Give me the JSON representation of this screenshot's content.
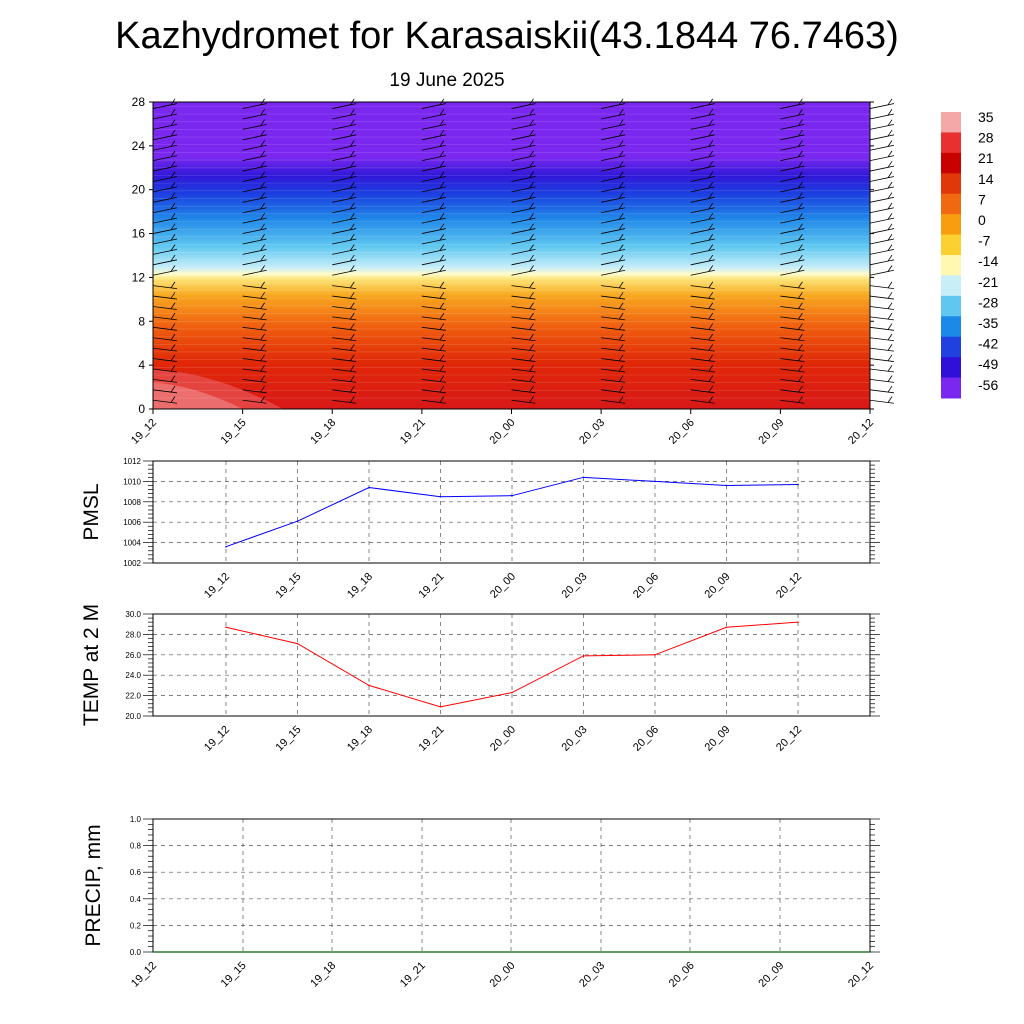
{
  "title": "Kazhydromet for Karasaiskii(43.1844 76.7463)",
  "subtitle": "19 June 2025",
  "chart_data": [
    {
      "type": "heatmap",
      "title": "",
      "xlabel": "",
      "ylabel": "",
      "x_ticks": [
        "19_12",
        "19_15",
        "19_18",
        "19_21",
        "20_00",
        "20_03",
        "20_06",
        "20_09",
        "20_12"
      ],
      "y_ticks": [
        "0",
        "4",
        "8",
        "12",
        "16",
        "20",
        "24",
        "28"
      ],
      "ylim": [
        0,
        28
      ],
      "colorbar": {
        "labels": [
          "35",
          "28",
          "21",
          "14",
          "7",
          "0",
          "-7",
          "-14",
          "-21",
          "-28",
          "-35",
          "-42",
          "-49",
          "-56"
        ],
        "colors": [
          "#f4a8a8",
          "#e83030",
          "#c80000",
          "#e03808",
          "#f06810",
          "#f89c10",
          "#fcd030",
          "#fff8b0",
          "#c8eef8",
          "#60c8f0",
          "#1c88e8",
          "#2040e0",
          "#3010d8",
          "#7a28f0"
        ]
      },
      "barbs": "wind barbs at each time step"
    },
    {
      "type": "line",
      "ylabel": "PMSL",
      "x": [
        "19_12",
        "19_15",
        "19_18",
        "19_21",
        "20_00",
        "20_03",
        "20_06",
        "20_09",
        "20_12"
      ],
      "y_ticks": [
        "1002",
        "1004",
        "1006",
        "1008",
        "1010",
        "1012"
      ],
      "ylim": [
        1002,
        1012
      ],
      "series": [
        {
          "values": [
            1003.6,
            1006.1,
            1009.4,
            1008.5,
            1008.6,
            1010.4,
            1010.0,
            1009.6,
            1009.7
          ],
          "color": "#0000ff"
        }
      ]
    },
    {
      "type": "line",
      "ylabel": "TEMP at 2 M",
      "x": [
        "19_12",
        "19_15",
        "19_18",
        "19_21",
        "20_00",
        "20_03",
        "20_06",
        "20_09",
        "20_12"
      ],
      "y_ticks": [
        "20.0",
        "22.0",
        "24.0",
        "26.0",
        "28.0",
        "30.0"
      ],
      "ylim": [
        20,
        30
      ],
      "series": [
        {
          "values": [
            28.7,
            27.1,
            23.0,
            20.9,
            22.3,
            25.9,
            26.0,
            28.7,
            29.2
          ],
          "color": "#ff0000"
        }
      ]
    },
    {
      "type": "line",
      "ylabel": "PRECIP, mm",
      "x": [
        "19_12",
        "19_15",
        "19_18",
        "19_21",
        "20_00",
        "20_03",
        "20_06",
        "20_09",
        "20_12"
      ],
      "y_ticks": [
        "0.0",
        "0.2",
        "0.4",
        "0.6",
        "0.8",
        "1.0"
      ],
      "ylim": [
        0,
        1
      ],
      "series": [
        {
          "values": [
            0,
            0,
            0,
            0,
            0,
            0,
            0,
            0,
            0
          ],
          "color": "#006400"
        }
      ]
    }
  ]
}
